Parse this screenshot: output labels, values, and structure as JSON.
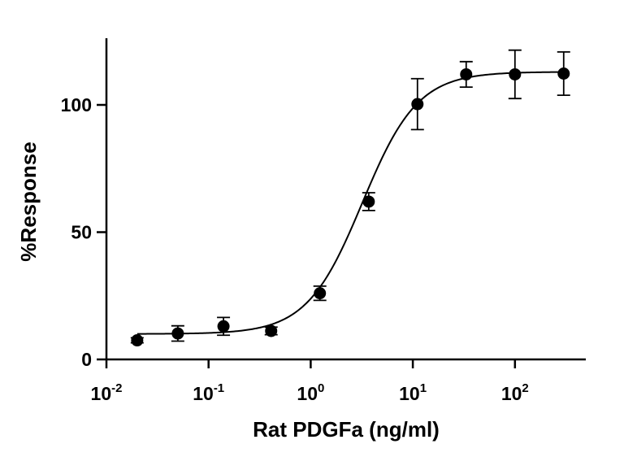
{
  "chart_data": {
    "type": "scatter",
    "xscale": "log",
    "xlabel": "Rat PDGFa (ng/ml)",
    "ylabel": "%Response",
    "xlim": [
      0.01,
      500
    ],
    "ylim": [
      0,
      125
    ],
    "grid": false,
    "legend": "none",
    "x_ticks": [
      {
        "value": 0.01,
        "base": "10",
        "exp": "-2"
      },
      {
        "value": 0.1,
        "base": "10",
        "exp": "-1"
      },
      {
        "value": 1,
        "base": "10",
        "exp": "0"
      },
      {
        "value": 10,
        "base": "10",
        "exp": "1"
      },
      {
        "value": 100,
        "base": "10",
        "exp": "2"
      }
    ],
    "y_ticks": [
      {
        "value": 0,
        "label": "0"
      },
      {
        "value": 50,
        "label": "50"
      },
      {
        "value": 100,
        "label": "100"
      }
    ],
    "series": [
      {
        "points": [
          {
            "x": 0.02,
            "y": 7.5,
            "err": 1.0
          },
          {
            "x": 0.05,
            "y": 10.2,
            "err": 3.0
          },
          {
            "x": 0.14,
            "y": 13.0,
            "err": 3.5
          },
          {
            "x": 0.41,
            "y": 11.2,
            "err": 1.5
          },
          {
            "x": 1.23,
            "y": 26.0,
            "err": 2.8
          },
          {
            "x": 3.7,
            "y": 62.0,
            "err": 3.5
          },
          {
            "x": 11.1,
            "y": 100.3,
            "err": 10.0
          },
          {
            "x": 33.3,
            "y": 112.0,
            "err": 5.0
          },
          {
            "x": 100,
            "y": 112.0,
            "err": 9.5
          },
          {
            "x": 300,
            "y": 112.3,
            "err": 8.5
          }
        ],
        "fit": {
          "model": "4PL",
          "bottom": 10,
          "top": 113,
          "ec50": 3.2,
          "hill": 1.6
        }
      }
    ],
    "colors": {
      "marker": "#000000",
      "line": "#000000"
    }
  }
}
